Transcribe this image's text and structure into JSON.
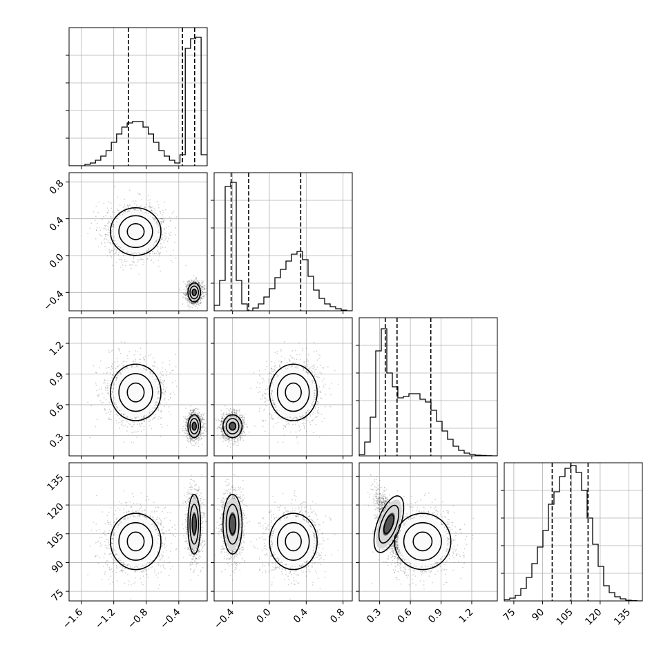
{
  "chart_data": {
    "type": "corner",
    "grid": true,
    "parameters": [
      {
        "range": [
          -1.75,
          -0.05
        ],
        "ticks": [
          -1.6,
          -1.2,
          -0.8,
          -0.4
        ],
        "tick_labels": [
          "−1.6",
          "−1.2",
          "−0.8",
          "−0.4"
        ]
      },
      {
        "range": [
          -0.6,
          0.9
        ],
        "ticks": [
          -0.4,
          0.0,
          0.4,
          0.8
        ],
        "tick_labels": [
          "−0.4",
          "0.0",
          "0.4",
          "0.8"
        ]
      },
      {
        "range": [
          0.1,
          1.45
        ],
        "ticks": [
          0.3,
          0.6,
          0.9,
          1.2
        ],
        "tick_labels": [
          "0.3",
          "0.6",
          "0.9",
          "1.2"
        ]
      },
      {
        "range": [
          70,
          142
        ],
        "ticks": [
          75,
          90,
          105,
          120,
          135
        ],
        "tick_labels": [
          "75",
          "90",
          "105",
          "120",
          "135"
        ]
      }
    ],
    "histograms": [
      {
        "edges": [
          -1.75,
          -1.685,
          -1.62,
          -1.555,
          -1.49,
          -1.425,
          -1.36,
          -1.295,
          -1.23,
          -1.165,
          -1.1,
          -1.035,
          -0.97,
          -0.905,
          -0.84,
          -0.775,
          -0.71,
          -0.645,
          -0.58,
          -0.515,
          -0.45,
          -0.385,
          -0.32,
          -0.255,
          -0.19,
          -0.125,
          -0.05
        ],
        "counts": [
          0,
          0,
          0,
          0.01,
          0.02,
          0.04,
          0.07,
          0.11,
          0.17,
          0.23,
          0.28,
          0.31,
          0.32,
          0.32,
          0.28,
          0.23,
          0.17,
          0.11,
          0.07,
          0.04,
          0.02,
          0.08,
          0.85,
          0.92,
          0.93,
          0.08
        ],
        "quantiles": [
          -1.02,
          -0.355,
          -0.205
        ],
        "ylim": [
          0,
          1
        ]
      },
      {
        "edges": [
          -0.6,
          -0.54,
          -0.48,
          -0.42,
          -0.36,
          -0.3,
          -0.24,
          -0.18,
          -0.12,
          -0.06,
          0.0,
          0.06,
          0.12,
          0.18,
          0.24,
          0.3,
          0.36,
          0.42,
          0.48,
          0.54,
          0.6,
          0.66,
          0.72,
          0.78,
          0.84,
          0.9
        ],
        "counts": [
          0.04,
          0.22,
          0.9,
          0.93,
          0.22,
          0.05,
          0.0,
          0.02,
          0.05,
          0.1,
          0.16,
          0.24,
          0.3,
          0.36,
          0.41,
          0.43,
          0.37,
          0.25,
          0.15,
          0.09,
          0.05,
          0.03,
          0.015,
          0.005,
          0.0
        ],
        "quantiles": [
          -0.415,
          -0.225,
          0.34
        ],
        "ylim": [
          0,
          1
        ]
      },
      {
        "edges": [
          0.1,
          0.154,
          0.208,
          0.262,
          0.316,
          0.37,
          0.424,
          0.478,
          0.532,
          0.586,
          0.64,
          0.694,
          0.748,
          0.802,
          0.856,
          0.91,
          0.964,
          1.018,
          1.072,
          1.126,
          1.18,
          1.234,
          1.288,
          1.342,
          1.396,
          1.45
        ],
        "counts": [
          0.01,
          0.1,
          0.28,
          0.76,
          0.92,
          0.6,
          0.5,
          0.42,
          0.43,
          0.45,
          0.45,
          0.41,
          0.39,
          0.33,
          0.25,
          0.18,
          0.12,
          0.07,
          0.04,
          0.02,
          0.01,
          0.005,
          0.003,
          0.001,
          0.0
        ],
        "quantiles": [
          0.355,
          0.47,
          0.8
        ],
        "ylim": [
          0,
          1
        ]
      },
      {
        "edges": [
          70,
          72.88,
          75.76,
          78.64,
          81.52,
          84.4,
          87.28,
          90.16,
          93.04,
          95.92,
          98.8,
          101.68,
          104.56,
          107.44,
          110.32,
          113.2,
          116.08,
          118.96,
          121.84,
          124.72,
          127.6,
          130.48,
          133.36,
          136.24,
          139.12,
          142
        ],
        "counts": [
          0.01,
          0.02,
          0.04,
          0.09,
          0.17,
          0.27,
          0.39,
          0.51,
          0.7,
          0.79,
          0.9,
          0.96,
          0.98,
          0.93,
          0.8,
          0.6,
          0.41,
          0.25,
          0.11,
          0.06,
          0.03,
          0.015,
          0.005,
          0.002,
          0.0
        ],
        "quantiles": [
          95.0,
          104.7,
          113.7
        ],
        "ylim": [
          0,
          1
        ]
      }
    ],
    "modes": [
      {
        "weight": 0.5,
        "mean": [
          -0.93,
          0.26,
          0.72,
          101.0
        ],
        "sd": [
          0.18,
          0.15,
          0.16,
          8.5
        ]
      },
      {
        "weight": 0.5,
        "mean": [
          -0.21,
          -0.4,
          0.39,
          110.0
        ],
        "sd": [
          0.045,
          0.06,
          0.065,
          9.0
        ],
        "corr_2_3": -0.75
      }
    ],
    "contour_levels_sigma": [
      0.5,
      1.0,
      1.5
    ]
  }
}
